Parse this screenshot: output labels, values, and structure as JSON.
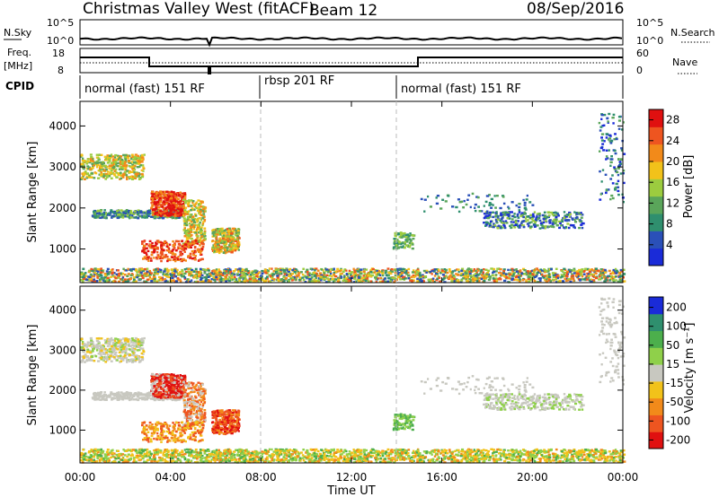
{
  "header": {
    "title": "Christmas Valley West (fitACF)",
    "beam": "Beam 12",
    "date": "08/Sep/2016"
  },
  "noise_panel": {
    "left_label": "N.Sky",
    "right_label": "N.Search",
    "left_ticks": [
      "10^5",
      "10^0"
    ],
    "right_ticks": [
      "10^5",
      "10^0"
    ]
  },
  "freq_panel": {
    "left_label_line1": "Freq.",
    "left_label_line2": "[MHz]",
    "left_ticks": [
      "18",
      "8"
    ],
    "right_label": "Nave",
    "right_ticks": [
      "60",
      "0"
    ]
  },
  "cpid_panel": {
    "label": "CPID",
    "segments": [
      "normal (fast) 151 RF",
      "rbsp 201 RF",
      "normal (fast) 151 RF"
    ]
  },
  "colors": {
    "power_scale": [
      "#1a2bd8",
      "#2a50b8",
      "#2f8f6e",
      "#5aa55a",
      "#9ccc3f",
      "#f2c21a",
      "#f28a1a",
      "#ee5520",
      "#e01010"
    ],
    "velocity_scale": [
      "#e01010",
      "#ee5520",
      "#f28a1a",
      "#f2c21a",
      "#c8c8c0",
      "#8fd04a",
      "#4caf4c",
      "#2f8f6e",
      "#1a2bd8"
    ]
  },
  "chart_data": [
    {
      "type": "heatmap",
      "title": "Power",
      "ylabel": "Slant Range [km]",
      "xlabel": "Time UT",
      "x_ticks": [
        "00:00",
        "04:00",
        "08:00",
        "12:00",
        "16:00",
        "20:00",
        "00:00"
      ],
      "y_ticks": [
        "1000",
        "2000",
        "3000",
        "4000"
      ],
      "ylim": [
        180,
        4600
      ],
      "xlim_hours": [
        0,
        24
      ],
      "colorbar_label": "Power [dB]",
      "colorbar_ticks": [
        "4",
        "8",
        "12",
        "16",
        "20",
        "24",
        "28"
      ],
      "colorbar_range": [
        0,
        30
      ]
    },
    {
      "type": "heatmap",
      "title": "Velocity",
      "ylabel": "Slant Range [km]",
      "xlabel": "Time UT",
      "x_ticks": [
        "00:00",
        "04:00",
        "08:00",
        "12:00",
        "16:00",
        "20:00",
        "00:00"
      ],
      "y_ticks": [
        "1000",
        "2000",
        "3000",
        "4000"
      ],
      "ylim": [
        180,
        4600
      ],
      "xlim_hours": [
        0,
        24
      ],
      "colorbar_label": "Velocity [m s⁻¹]",
      "colorbar_ticks": [
        "200",
        "100",
        "50",
        "15",
        "-15",
        "-50",
        "-100",
        "-200"
      ]
    }
  ],
  "axis": {
    "xlabel": "Time UT"
  }
}
